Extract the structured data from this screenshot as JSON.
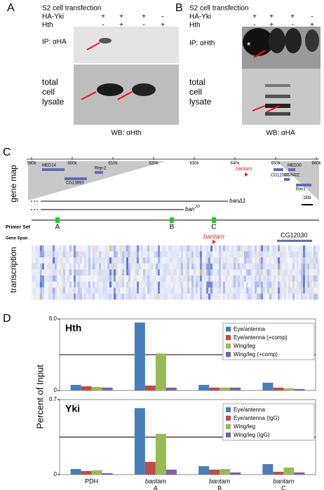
{
  "panels": {
    "A": {
      "label": "A",
      "transfection": "S2 cell transfection",
      "rows": [
        {
          "name": "HA-Yki",
          "signs": [
            "+",
            "+",
            "+",
            "-"
          ]
        },
        {
          "name": "Hth",
          "signs": [
            "-",
            "+",
            "-",
            "+"
          ]
        }
      ],
      "ip": "IP: αHA",
      "lysate": [
        "total",
        "cell",
        "lysate"
      ],
      "wb": "WB: αHth"
    },
    "B": {
      "label": "B",
      "transfection": "S2 cell transfection",
      "rows": [
        {
          "name": "HA-Yki",
          "signs": [
            "+",
            "+",
            "+",
            "-"
          ]
        },
        {
          "name": "Hth",
          "signs": [
            "-",
            "+",
            "-",
            "+"
          ]
        }
      ],
      "ip": "IP: αHth",
      "star": "*",
      "lysate": [
        "total",
        "cell",
        "lysate"
      ],
      "wb": "WB: αHA"
    },
    "C": {
      "label": "C",
      "scale": [
        "590k",
        "600k",
        "610k",
        "620k",
        "630k",
        "640k",
        "650k",
        "660k"
      ],
      "genes": [
        "MED14",
        "CG13893",
        "Rep-2",
        "bantam",
        "CG12030",
        "MED30",
        "CG9402",
        "Rex1"
      ],
      "gene_map": "gene map",
      "deletion_1": "banΔ1",
      "deletion_2": "ban",
      "deletion_2_sup": "20",
      "scale_bar": "1kb",
      "primer_set": "Primer Set",
      "primers": [
        "A",
        "B",
        "C"
      ],
      "gene_span": "Gene Span",
      "span_bantam": "bantam",
      "span_gene": "CG12030",
      "transcription": "transcription"
    },
    "D": {
      "label": "D",
      "ylabel": "Percent of Input"
    }
  },
  "chart_data": [
    {
      "type": "bar",
      "title": "Hth",
      "ylim": [
        0,
        6
      ],
      "yticks": [
        0,
        {
          "value": 6,
          "label": "6.0"
        }
      ],
      "hline": 3,
      "series": [
        {
          "name": "Eye/antenna",
          "color": "#4a7ebb",
          "values": [
            0.47,
            5.7,
            0.47,
            0.65
          ]
        },
        {
          "name": "Eye/antenna (+comp)",
          "color": "#be4b48",
          "values": [
            0.35,
            0.41,
            0.24,
            0.24
          ]
        },
        {
          "name": "Wing/leg",
          "color": "#98b954",
          "values": [
            0.29,
            3.1,
            0.24,
            0.18
          ]
        },
        {
          "name": "Wing/leg (+comp)",
          "color": "#7d60a0",
          "values": [
            0.24,
            0.24,
            0.24,
            0.12
          ]
        }
      ]
    },
    {
      "type": "bar",
      "title": "Yki",
      "ylim": [
        0,
        0.7
      ],
      "yticks": [
        0,
        0.7
      ],
      "hline": 0.35,
      "categories": [
        "PDH",
        "bantam",
        "bantam",
        "bantam"
      ],
      "category_sublabels": [
        null,
        "A",
        "B",
        "C"
      ],
      "series": [
        {
          "name": "Eye/antenna",
          "color": "#4a7ebb",
          "values": [
            0.052,
            0.62,
            0.078,
            0.098
          ]
        },
        {
          "name": "Eye/antenna (IgG)",
          "color": "#be4b48",
          "values": [
            0.033,
            0.118,
            0.046,
            0.026
          ]
        },
        {
          "name": "Wing/leg",
          "color": "#98b954",
          "values": [
            0.04,
            0.38,
            0.052,
            0.065
          ]
        },
        {
          "name": "Wing/leg (IgG)",
          "color": "#7d60a0",
          "values": [
            0.013,
            0.046,
            0.02,
            0.02
          ]
        }
      ]
    }
  ]
}
